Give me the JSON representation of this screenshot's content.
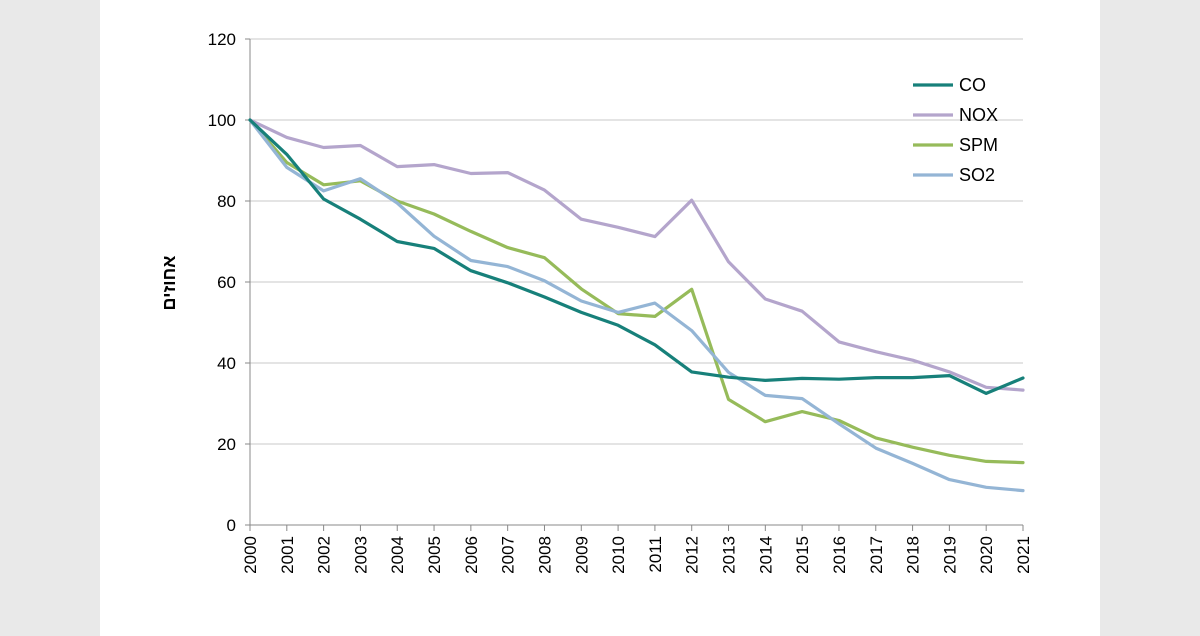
{
  "chart_data": {
    "type": "line",
    "title": "",
    "xlabel": "",
    "ylabel": "אחוזים",
    "ylim": [
      0,
      120
    ],
    "yticks": [
      0,
      20,
      40,
      60,
      80,
      100,
      120
    ],
    "grid": true,
    "legend_position": "top-right",
    "x": [
      "2000",
      "2001",
      "2002",
      "2003",
      "2004",
      "2005",
      "2006",
      "2007",
      "2008",
      "2009",
      "2010",
      "2011",
      "2012",
      "2013",
      "2014",
      "2015",
      "2016",
      "2017",
      "2018",
      "2019",
      "2020",
      "2021"
    ],
    "series": [
      {
        "name": "CO",
        "color": "#17807a",
        "values": [
          100,
          91.5,
          80.5,
          75.5,
          70,
          68.3,
          62.8,
          59.8,
          56.3,
          52.5,
          49.3,
          44.5,
          37.8,
          36.5,
          35.7,
          36.2,
          36,
          36.4,
          36.4,
          36.9,
          32.5,
          36.3
        ]
      },
      {
        "name": "NOX",
        "color": "#b4a5cc",
        "values": [
          100,
          95.7,
          93.2,
          93.7,
          88.5,
          89,
          86.8,
          87,
          82.7,
          75.5,
          73.5,
          71.2,
          80.2,
          65,
          55.8,
          52.8,
          45.2,
          42.8,
          40.7,
          37.8,
          34,
          33.3
        ]
      },
      {
        "name": "SPM",
        "color": "#96bb5a",
        "values": [
          100,
          89.5,
          84,
          85,
          80,
          76.8,
          72.5,
          68.5,
          66,
          58.3,
          52.2,
          51.5,
          58.2,
          31,
          25.5,
          28,
          25.8,
          21.5,
          19.2,
          17.2,
          15.7,
          15.4
        ]
      },
      {
        "name": "SO2",
        "color": "#94b5d5",
        "values": [
          100,
          88.3,
          82.5,
          85.5,
          79.5,
          71.3,
          65.3,
          63.8,
          60.3,
          55.3,
          52.5,
          54.8,
          48,
          37.7,
          32,
          31.2,
          25,
          19,
          15.2,
          11.2,
          9.3,
          8.5
        ]
      }
    ]
  }
}
